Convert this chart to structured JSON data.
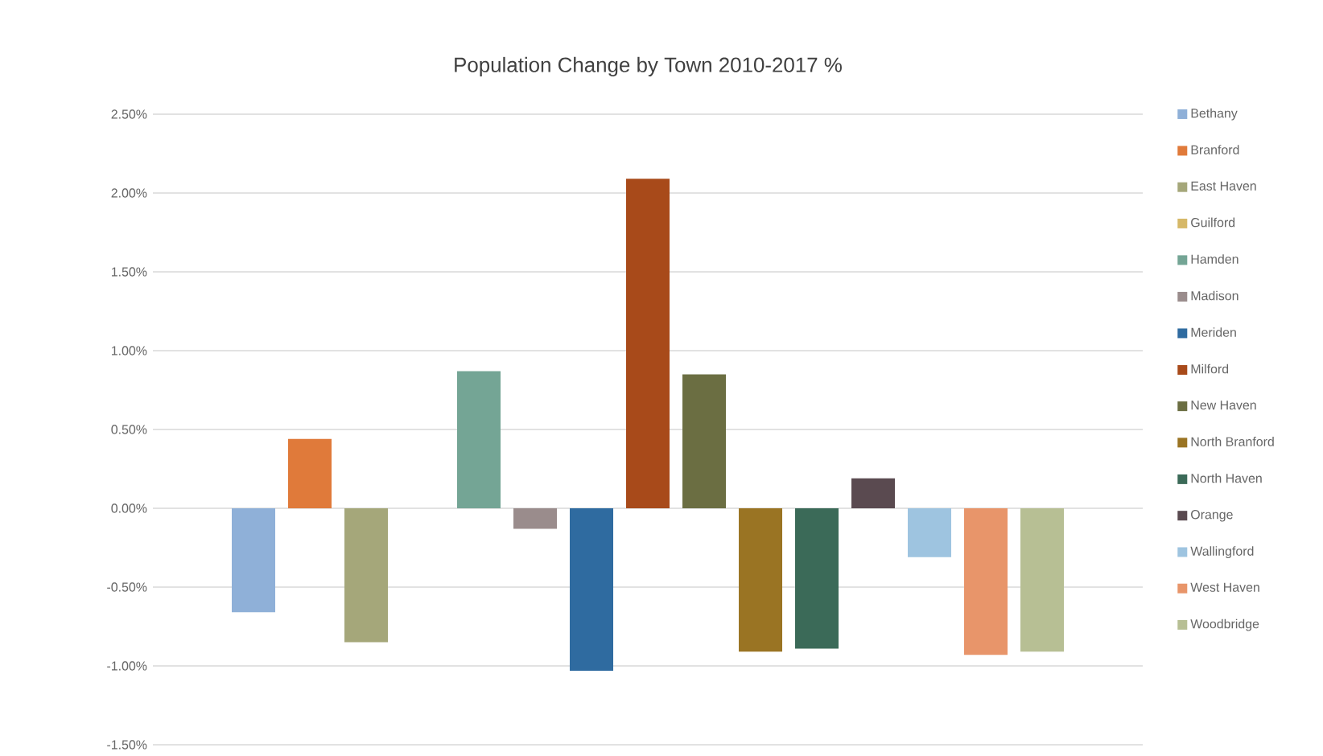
{
  "chart_data": {
    "type": "bar",
    "title": "Population Change by Town 2010-2017 %",
    "categories": [
      null
    ],
    "series": [
      {
        "name": "Bethany",
        "color": "#8fb0d8",
        "values": [
          -0.66
        ]
      },
      {
        "name": "Branford",
        "color": "#e07a3a",
        "values": [
          0.44
        ]
      },
      {
        "name": "East Haven",
        "color": "#a5a77a",
        "values": [
          -0.85
        ]
      },
      {
        "name": "Guilford",
        "color": "#d6b868",
        "values": [
          0.0
        ]
      },
      {
        "name": "Hamden",
        "color": "#74a595",
        "values": [
          0.87
        ]
      },
      {
        "name": "Madison",
        "color": "#9a8c8c",
        "values": [
          -0.13
        ]
      },
      {
        "name": "Meriden",
        "color": "#2f6ba0",
        "values": [
          -1.03
        ]
      },
      {
        "name": "Milford",
        "color": "#a84a1a",
        "values": [
          2.09
        ]
      },
      {
        "name": "New Haven",
        "color": "#6b6e42",
        "values": [
          0.85
        ]
      },
      {
        "name": "North Branford",
        "color": "#9a7423",
        "values": [
          -0.91
        ]
      },
      {
        "name": "North Haven",
        "color": "#3b6a58",
        "values": [
          -0.89
        ]
      },
      {
        "name": "Orange",
        "color": "#5a4a50",
        "values": [
          0.19
        ]
      },
      {
        "name": "Wallingford",
        "color": "#9ec4e0",
        "values": [
          -0.31
        ]
      },
      {
        "name": "West Haven",
        "color": "#e8956a",
        "values": [
          -0.93
        ]
      },
      {
        "name": "Woodbridge",
        "color": "#b7bf94",
        "values": [
          -0.91
        ]
      }
    ],
    "ylim": [
      -1.5,
      2.5
    ],
    "yticks": [
      {
        "value": -1.5,
        "label": "-1.50%"
      },
      {
        "value": -1.0,
        "label": "-1.00%"
      },
      {
        "value": -0.5,
        "label": "-0.50%"
      },
      {
        "value": 0.0,
        "label": "0.00%"
      },
      {
        "value": 0.5,
        "label": "0.50%"
      },
      {
        "value": 1.0,
        "label": "1.00%"
      },
      {
        "value": 1.5,
        "label": "1.50%"
      },
      {
        "value": 2.0,
        "label": "2.00%"
      },
      {
        "value": 2.5,
        "label": "2.50%"
      }
    ],
    "grid": "y",
    "legend": "right"
  }
}
